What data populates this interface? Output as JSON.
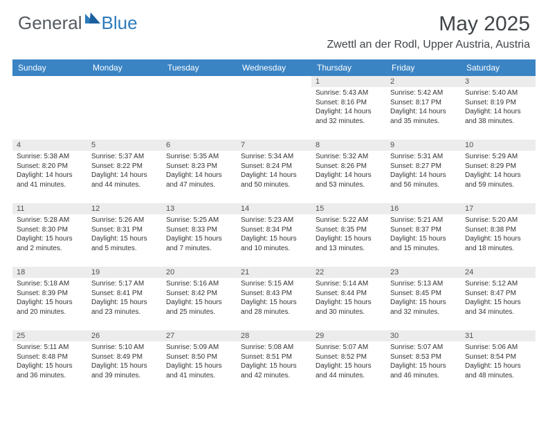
{
  "logo": {
    "part1": "General",
    "part2": "Blue"
  },
  "title": "May 2025",
  "location": "Zwettl an der Rodl, Upper Austria, Austria",
  "colors": {
    "header_bg": "#3a84c4",
    "header_text": "#ffffff",
    "daynum_bg": "#ececec",
    "body_text": "#333333",
    "logo_gray": "#555a60",
    "logo_blue": "#2d7bbd"
  },
  "day_headers": [
    "Sunday",
    "Monday",
    "Tuesday",
    "Wednesday",
    "Thursday",
    "Friday",
    "Saturday"
  ],
  "weeks": [
    [
      null,
      null,
      null,
      null,
      {
        "n": "1",
        "sr": "5:43 AM",
        "ss": "8:16 PM",
        "dl": "14 hours and 32 minutes."
      },
      {
        "n": "2",
        "sr": "5:42 AM",
        "ss": "8:17 PM",
        "dl": "14 hours and 35 minutes."
      },
      {
        "n": "3",
        "sr": "5:40 AM",
        "ss": "8:19 PM",
        "dl": "14 hours and 38 minutes."
      }
    ],
    [
      {
        "n": "4",
        "sr": "5:38 AM",
        "ss": "8:20 PM",
        "dl": "14 hours and 41 minutes."
      },
      {
        "n": "5",
        "sr": "5:37 AM",
        "ss": "8:22 PM",
        "dl": "14 hours and 44 minutes."
      },
      {
        "n": "6",
        "sr": "5:35 AM",
        "ss": "8:23 PM",
        "dl": "14 hours and 47 minutes."
      },
      {
        "n": "7",
        "sr": "5:34 AM",
        "ss": "8:24 PM",
        "dl": "14 hours and 50 minutes."
      },
      {
        "n": "8",
        "sr": "5:32 AM",
        "ss": "8:26 PM",
        "dl": "14 hours and 53 minutes."
      },
      {
        "n": "9",
        "sr": "5:31 AM",
        "ss": "8:27 PM",
        "dl": "14 hours and 56 minutes."
      },
      {
        "n": "10",
        "sr": "5:29 AM",
        "ss": "8:29 PM",
        "dl": "14 hours and 59 minutes."
      }
    ],
    [
      {
        "n": "11",
        "sr": "5:28 AM",
        "ss": "8:30 PM",
        "dl": "15 hours and 2 minutes."
      },
      {
        "n": "12",
        "sr": "5:26 AM",
        "ss": "8:31 PM",
        "dl": "15 hours and 5 minutes."
      },
      {
        "n": "13",
        "sr": "5:25 AM",
        "ss": "8:33 PM",
        "dl": "15 hours and 7 minutes."
      },
      {
        "n": "14",
        "sr": "5:23 AM",
        "ss": "8:34 PM",
        "dl": "15 hours and 10 minutes."
      },
      {
        "n": "15",
        "sr": "5:22 AM",
        "ss": "8:35 PM",
        "dl": "15 hours and 13 minutes."
      },
      {
        "n": "16",
        "sr": "5:21 AM",
        "ss": "8:37 PM",
        "dl": "15 hours and 15 minutes."
      },
      {
        "n": "17",
        "sr": "5:20 AM",
        "ss": "8:38 PM",
        "dl": "15 hours and 18 minutes."
      }
    ],
    [
      {
        "n": "18",
        "sr": "5:18 AM",
        "ss": "8:39 PM",
        "dl": "15 hours and 20 minutes."
      },
      {
        "n": "19",
        "sr": "5:17 AM",
        "ss": "8:41 PM",
        "dl": "15 hours and 23 minutes."
      },
      {
        "n": "20",
        "sr": "5:16 AM",
        "ss": "8:42 PM",
        "dl": "15 hours and 25 minutes."
      },
      {
        "n": "21",
        "sr": "5:15 AM",
        "ss": "8:43 PM",
        "dl": "15 hours and 28 minutes."
      },
      {
        "n": "22",
        "sr": "5:14 AM",
        "ss": "8:44 PM",
        "dl": "15 hours and 30 minutes."
      },
      {
        "n": "23",
        "sr": "5:13 AM",
        "ss": "8:45 PM",
        "dl": "15 hours and 32 minutes."
      },
      {
        "n": "24",
        "sr": "5:12 AM",
        "ss": "8:47 PM",
        "dl": "15 hours and 34 minutes."
      }
    ],
    [
      {
        "n": "25",
        "sr": "5:11 AM",
        "ss": "8:48 PM",
        "dl": "15 hours and 36 minutes."
      },
      {
        "n": "26",
        "sr": "5:10 AM",
        "ss": "8:49 PM",
        "dl": "15 hours and 39 minutes."
      },
      {
        "n": "27",
        "sr": "5:09 AM",
        "ss": "8:50 PM",
        "dl": "15 hours and 41 minutes."
      },
      {
        "n": "28",
        "sr": "5:08 AM",
        "ss": "8:51 PM",
        "dl": "15 hours and 42 minutes."
      },
      {
        "n": "29",
        "sr": "5:07 AM",
        "ss": "8:52 PM",
        "dl": "15 hours and 44 minutes."
      },
      {
        "n": "30",
        "sr": "5:07 AM",
        "ss": "8:53 PM",
        "dl": "15 hours and 46 minutes."
      },
      {
        "n": "31",
        "sr": "5:06 AM",
        "ss": "8:54 PM",
        "dl": "15 hours and 48 minutes."
      }
    ]
  ],
  "labels": {
    "sunrise": "Sunrise: ",
    "sunset": "Sunset: ",
    "daylight": "Daylight: "
  }
}
